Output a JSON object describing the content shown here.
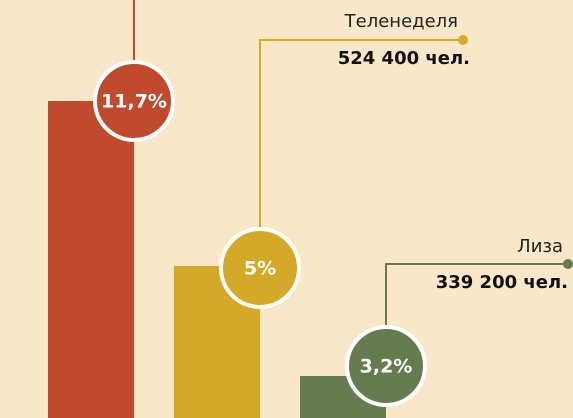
{
  "items": [
    {
      "label": "11,7%",
      "color": "#c04a2e"
    },
    {
      "label": "5%",
      "color": "#d4a928",
      "name": "Теленеделя",
      "audience": "524 400 чел."
    },
    {
      "label": "3,2%",
      "color": "#667c50",
      "name": "Лиза",
      "audience": "339 200 чел."
    }
  ]
}
